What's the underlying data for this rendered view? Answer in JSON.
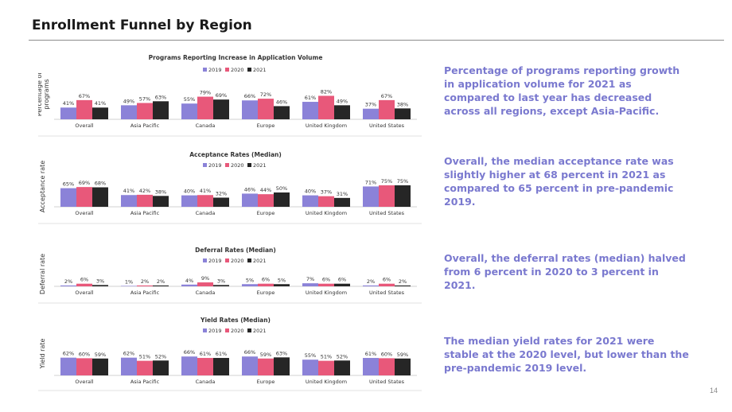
{
  "slide": {
    "title": "Enrollment Funnel by Region",
    "page_number": "14",
    "colors": {
      "y2019": "#8b82d8",
      "y2020": "#e8587a",
      "y2021": "#262626",
      "note": "#7a79cf"
    }
  },
  "notes": [
    "Percentage of programs reporting growth in application volume for 2021 as compared to last year has decreased across all regions, except Asia-Pacific.",
    "Overall, the median acceptance rate was slightly higher at 68 percent in 2021 as compared to 65 percent in pre-pandemic 2019.",
    "Overall, the deferral rates (median) halved from 6 percent in 2020 to 3 percent in 2021.",
    "The median yield rates for 2021 were stable at the 2020 level, but lower than the pre-pandemic 2019 level."
  ],
  "chart_data": [
    {
      "type": "bar",
      "title": "Programs Reporting Increase in Application Volume",
      "ylabel": "Percentage of programs",
      "categories": [
        "Overall",
        "Asia Pacific",
        "Canada",
        "Europe",
        "United Kingdom",
        "United States"
      ],
      "series": [
        {
          "name": "2019",
          "values": [
            41,
            49,
            55,
            66,
            61,
            37
          ]
        },
        {
          "name": "2020",
          "values": [
            67,
            57,
            79,
            72,
            82,
            67
          ]
        },
        {
          "name": "2021",
          "values": [
            41,
            63,
            69,
            46,
            49,
            38
          ]
        }
      ],
      "ylim": [
        0,
        100
      ]
    },
    {
      "type": "bar",
      "title": "Acceptance Rates (Median)",
      "ylabel": "Acceptance rate",
      "categories": [
        "Overall",
        "Asia Pacific",
        "Canada",
        "Europe",
        "United Kingdom",
        "United States"
      ],
      "series": [
        {
          "name": "2019",
          "values": [
            65,
            41,
            40,
            46,
            40,
            71
          ]
        },
        {
          "name": "2020",
          "values": [
            69,
            42,
            41,
            44,
            37,
            75
          ]
        },
        {
          "name": "2021",
          "values": [
            68,
            38,
            32,
            50,
            31,
            75
          ]
        }
      ],
      "ylim": [
        0,
        100
      ]
    },
    {
      "type": "bar",
      "title": "Deferral Rates (Median)",
      "ylabel": "Deferral rate",
      "categories": [
        "Overall",
        "Asia Pacific",
        "Canada",
        "Europe",
        "United Kingdom",
        "United States"
      ],
      "series": [
        {
          "name": "2019",
          "values": [
            2,
            1,
            4,
            5,
            7,
            2
          ]
        },
        {
          "name": "2020",
          "values": [
            6,
            2,
            9,
            6,
            6,
            6
          ]
        },
        {
          "name": "2021",
          "values": [
            3,
            2,
            3,
            5,
            6,
            2
          ]
        }
      ],
      "ylim": [
        0,
        100
      ]
    },
    {
      "type": "bar",
      "title": "Yield Rates (Median)",
      "ylabel": "Yield rate",
      "categories": [
        "Overall",
        "Asia Pacific",
        "Canada",
        "Europe",
        "United Kingdom",
        "United States"
      ],
      "series": [
        {
          "name": "2019",
          "values": [
            62,
            62,
            66,
            66,
            55,
            61
          ]
        },
        {
          "name": "2020",
          "values": [
            60,
            51,
            61,
            59,
            51,
            60
          ]
        },
        {
          "name": "2021",
          "values": [
            59,
            52,
            61,
            63,
            52,
            59
          ]
        }
      ],
      "ylim": [
        0,
        100
      ]
    }
  ]
}
